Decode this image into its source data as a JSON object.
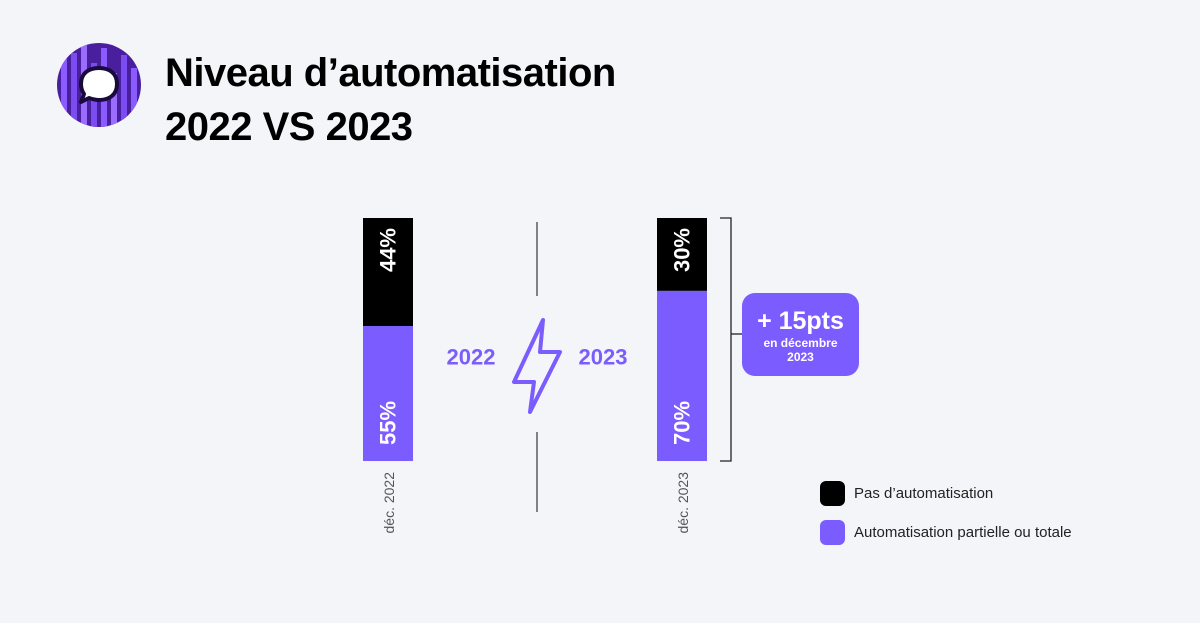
{
  "title": {
    "line1": "Niveau d’automatisation",
    "line2": "2022 VS 2023"
  },
  "logo_icon": "chat-bubble-icon",
  "colors": {
    "automated": "#7b5cff",
    "not_automated": "#000000",
    "background": "#f4f5f9"
  },
  "chart_data": {
    "type": "bar",
    "stacked": true,
    "orientation": "vertical",
    "categories": [
      "déc. 2022",
      "déc. 2023"
    ],
    "series": [
      {
        "name": "Automatisation partielle ou totale",
        "values": [
          55,
          70
        ],
        "labels": [
          "55%",
          "70%"
        ],
        "color": "#7b5cff"
      },
      {
        "name": "Pas d’automatisation",
        "values": [
          44,
          30
        ],
        "labels": [
          "44%",
          "30%"
        ],
        "color": "#000000"
      }
    ],
    "year_labels": [
      "2022",
      "2023"
    ],
    "legend_position": "bottom-right"
  },
  "annotation": {
    "main": "+ 15pts",
    "sub_line1": "en décembre",
    "sub_line2": "2023"
  },
  "legend": [
    {
      "label": "Pas d’automatisation",
      "color": "#000000"
    },
    {
      "label": "Automatisation partielle ou totale",
      "color": "#7b5cff"
    }
  ]
}
